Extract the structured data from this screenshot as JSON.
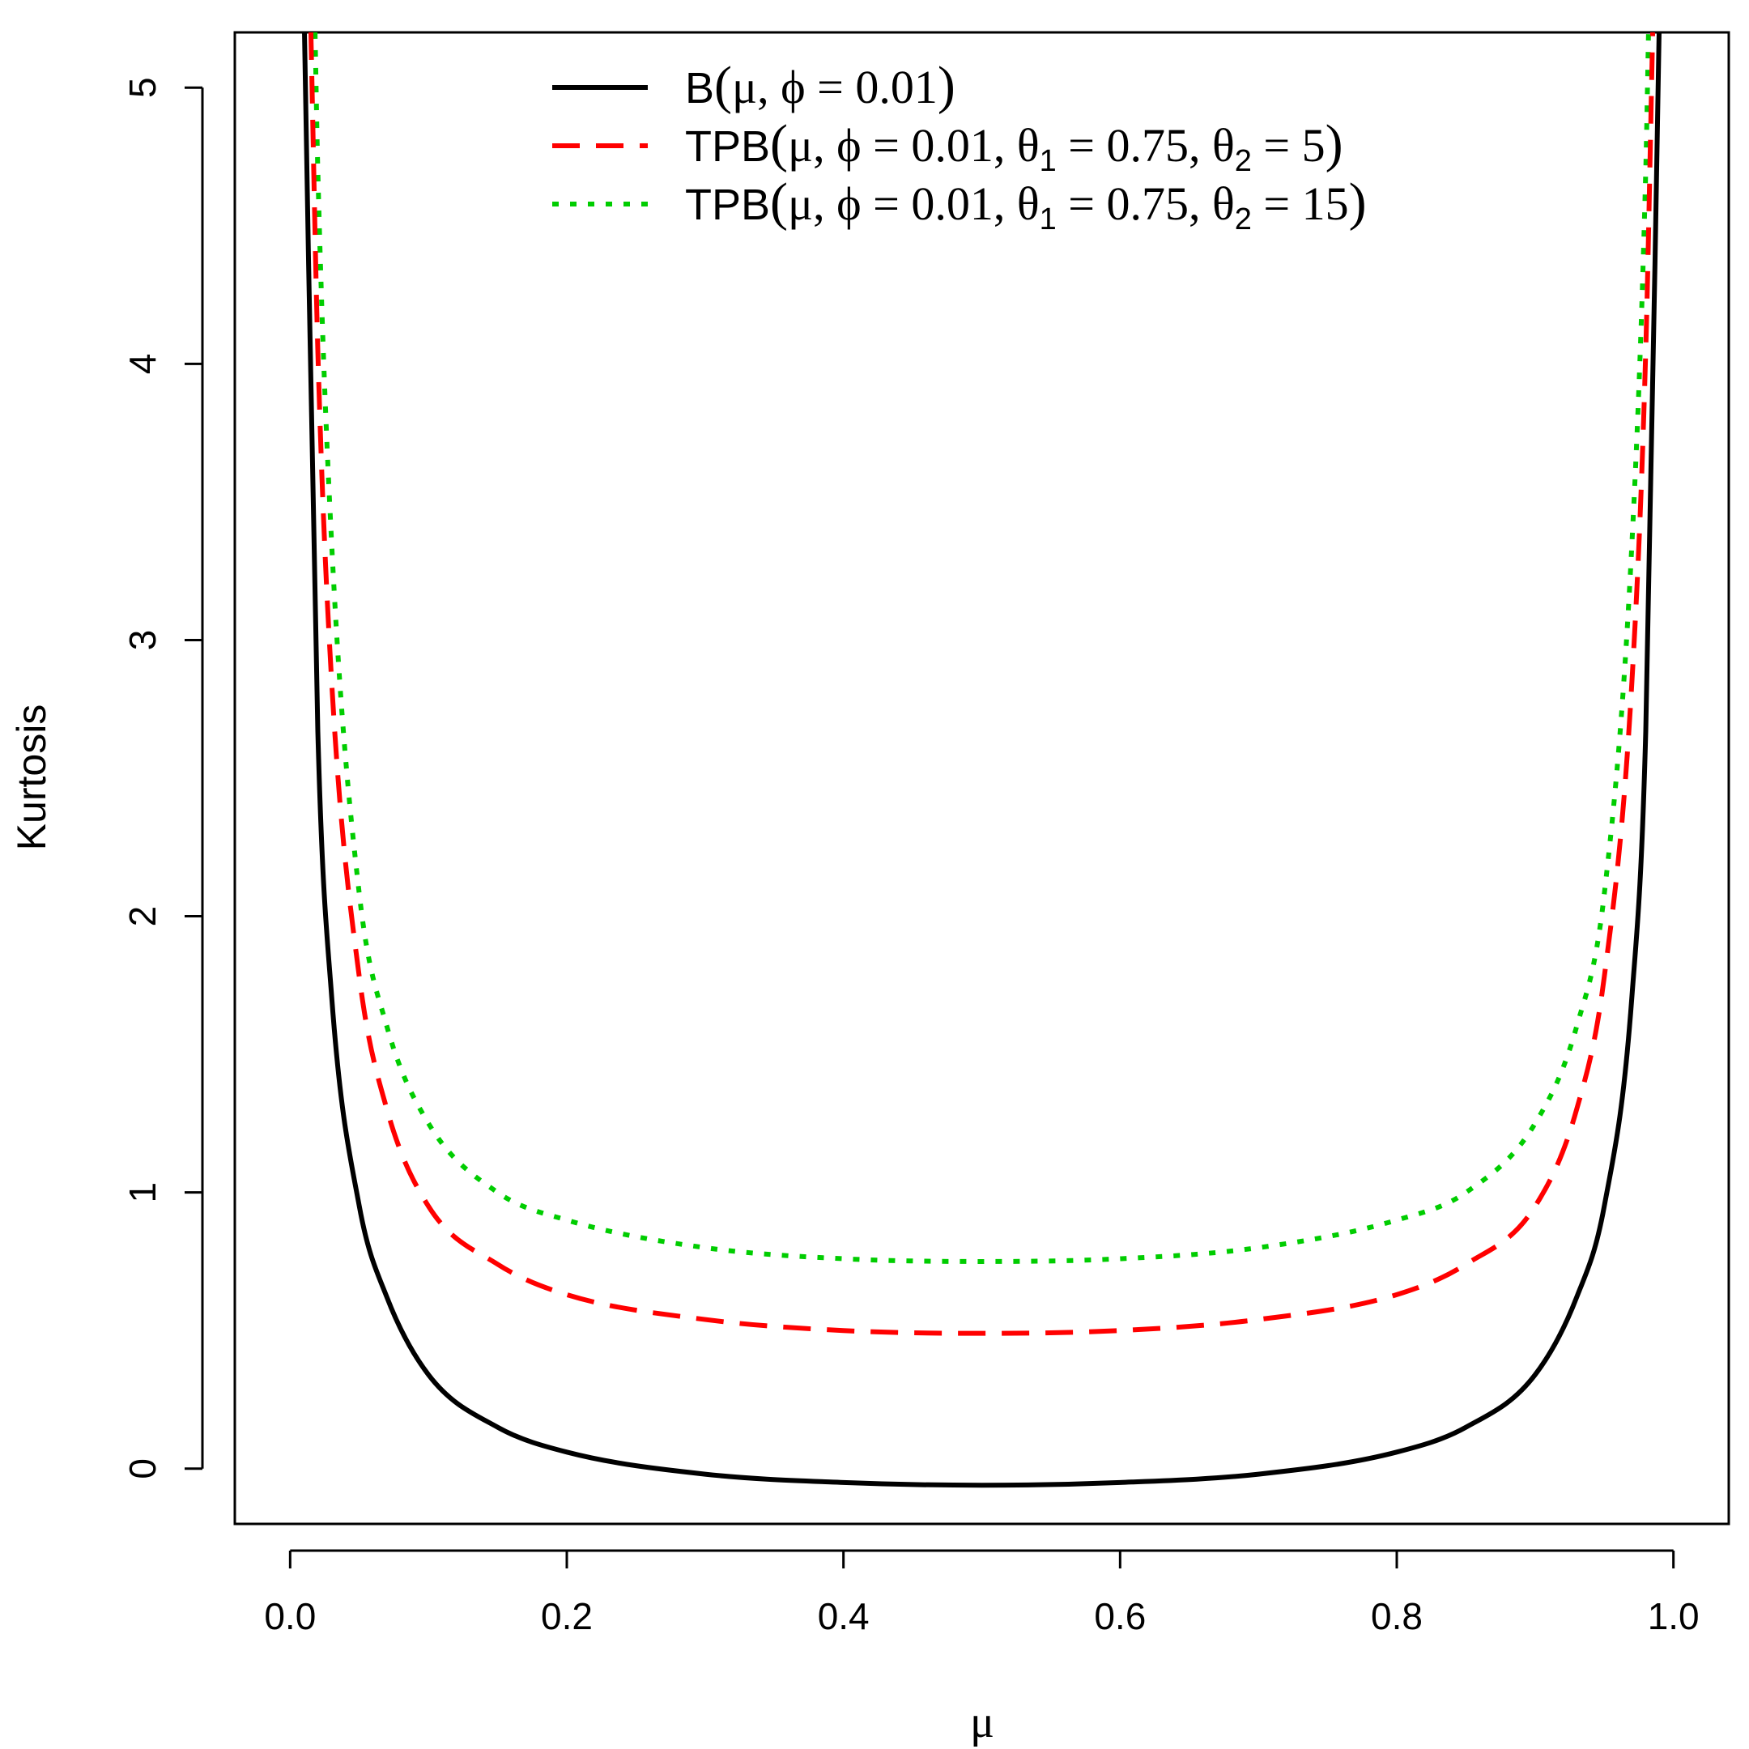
{
  "chart_data": {
    "type": "line",
    "xlabel": "μ",
    "ylabel": "Kurtosis",
    "xlim": [
      -0.04,
      1.04
    ],
    "ylim": [
      -0.2,
      5.2
    ],
    "x_ticks": [
      "0.0",
      "0.2",
      "0.4",
      "0.6",
      "0.8",
      "1.0"
    ],
    "y_ticks": [
      "0",
      "1",
      "2",
      "3",
      "4",
      "5"
    ],
    "grid": false,
    "legend_position": "top",
    "series": [
      {
        "name": "B(μ, ϕ = 0.01)",
        "legend": {
          "main": "B",
          "args": "μ, ϕ = 0.01"
        },
        "color": "#000000",
        "dash": "solid",
        "x": [
          0.01,
          0.02,
          0.03,
          0.05,
          0.07,
          0.1,
          0.15,
          0.2,
          0.3,
          0.4,
          0.5,
          0.6,
          0.7,
          0.8,
          0.85,
          0.9,
          0.93,
          0.95,
          0.97,
          0.98,
          0.99
        ],
        "values": [
          5.3,
          2.67,
          1.71,
          0.95,
          0.62,
          0.34,
          0.15,
          0.06,
          -0.02,
          -0.05,
          -0.06,
          -0.05,
          -0.02,
          0.06,
          0.15,
          0.34,
          0.62,
          0.95,
          1.71,
          2.67,
          5.3
        ]
      },
      {
        "name": "TPB(μ, ϕ = 0.01, θ1 = 0.75, θ2 = 5)",
        "legend": {
          "main": "TPB",
          "args": "μ, ϕ = 0.01, θ",
          "sub1": "1",
          "mid": " = 0.75, θ",
          "sub2": "2",
          "tail": " = 5"
        },
        "color": "#ff0000",
        "dash": "dashed",
        "x": [
          0.015,
          0.02,
          0.03,
          0.05,
          0.07,
          0.1,
          0.15,
          0.2,
          0.3,
          0.4,
          0.5,
          0.6,
          0.7,
          0.8,
          0.85,
          0.9,
          0.93,
          0.95,
          0.97,
          0.98,
          0.985
        ],
        "values": [
          5.2,
          4.05,
          2.85,
          1.78,
          1.3,
          0.95,
          0.74,
          0.63,
          0.54,
          0.5,
          0.49,
          0.5,
          0.54,
          0.63,
          0.74,
          0.95,
          1.3,
          1.78,
          2.85,
          4.05,
          5.2
        ]
      },
      {
        "name": "TPB(μ, ϕ = 0.01, θ1 = 0.75, θ2 = 15)",
        "legend": {
          "main": "TPB",
          "args": "μ, ϕ = 0.01, θ",
          "sub1": "1",
          "mid": " = 0.75, θ",
          "sub2": "2",
          "tail": " = 15"
        },
        "color": "#00cd00",
        "dash": "dotted",
        "x": [
          0.018,
          0.02,
          0.03,
          0.05,
          0.07,
          0.1,
          0.15,
          0.2,
          0.3,
          0.4,
          0.5,
          0.6,
          0.7,
          0.8,
          0.85,
          0.9,
          0.93,
          0.95,
          0.97,
          0.98,
          0.982
        ],
        "values": [
          5.2,
          4.7,
          3.35,
          2.08,
          1.6,
          1.25,
          1.0,
          0.9,
          0.8,
          0.76,
          0.75,
          0.76,
          0.8,
          0.9,
          1.0,
          1.25,
          1.6,
          2.08,
          3.35,
          4.7,
          5.2
        ]
      }
    ]
  }
}
